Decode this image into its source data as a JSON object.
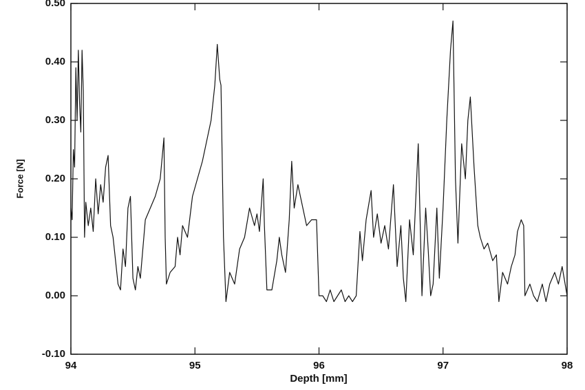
{
  "chart_data": {
    "type": "line",
    "xlabel": "Depth [mm]",
    "ylabel": "Force [N]",
    "x": [
      94.0,
      94.01,
      94.02,
      94.03,
      94.04,
      94.05,
      94.06,
      94.07,
      94.08,
      94.09,
      94.1,
      94.11,
      94.12,
      94.14,
      94.16,
      94.18,
      94.2,
      94.22,
      94.24,
      94.26,
      94.28,
      94.3,
      94.32,
      94.34,
      94.36,
      94.38,
      94.4,
      94.42,
      94.44,
      94.46,
      94.48,
      94.5,
      94.52,
      94.54,
      94.56,
      94.6,
      94.64,
      94.68,
      94.72,
      94.75,
      94.76,
      94.77,
      94.8,
      94.84,
      94.86,
      94.88,
      94.9,
      94.94,
      94.98,
      95.02,
      95.06,
      95.1,
      95.13,
      95.16,
      95.18,
      95.2,
      95.21,
      95.23,
      95.25,
      95.28,
      95.32,
      95.36,
      95.4,
      95.44,
      95.48,
      95.5,
      95.52,
      95.55,
      95.56,
      95.58,
      95.62,
      95.66,
      95.68,
      95.7,
      95.73,
      95.76,
      95.78,
      95.8,
      95.83,
      95.86,
      95.9,
      95.94,
      95.98,
      96.0,
      96.03,
      96.06,
      96.09,
      96.12,
      96.15,
      96.18,
      96.21,
      96.24,
      96.27,
      96.3,
      96.33,
      96.35,
      96.38,
      96.42,
      96.44,
      96.47,
      96.5,
      96.53,
      96.56,
      96.6,
      96.63,
      96.66,
      96.68,
      96.7,
      96.73,
      96.76,
      96.8,
      96.83,
      96.86,
      96.88,
      96.9,
      96.92,
      96.95,
      96.97,
      97.0,
      97.03,
      97.06,
      97.08,
      97.1,
      97.12,
      97.15,
      97.18,
      97.2,
      97.22,
      97.25,
      97.28,
      97.3,
      97.33,
      97.36,
      97.4,
      97.43,
      97.45,
      97.48,
      97.52,
      97.55,
      97.58,
      97.6,
      97.63,
      97.65,
      97.66,
      97.7,
      97.73,
      97.76,
      97.8,
      97.83,
      97.86,
      97.9,
      97.93,
      97.96,
      98.0
    ],
    "values": [
      0.15,
      0.13,
      0.25,
      0.22,
      0.39,
      0.3,
      0.42,
      0.33,
      0.28,
      0.42,
      0.35,
      0.1,
      0.16,
      0.12,
      0.15,
      0.11,
      0.2,
      0.14,
      0.19,
      0.16,
      0.22,
      0.24,
      0.12,
      0.1,
      0.06,
      0.02,
      0.01,
      0.08,
      0.05,
      0.15,
      0.17,
      0.03,
      0.01,
      0.05,
      0.03,
      0.13,
      0.15,
      0.17,
      0.2,
      0.27,
      0.1,
      0.02,
      0.04,
      0.05,
      0.1,
      0.07,
      0.12,
      0.1,
      0.17,
      0.2,
      0.23,
      0.27,
      0.3,
      0.36,
      0.43,
      0.37,
      0.36,
      0.1,
      -0.01,
      0.04,
      0.02,
      0.08,
      0.1,
      0.15,
      0.12,
      0.14,
      0.11,
      0.2,
      0.12,
      0.01,
      0.01,
      0.06,
      0.1,
      0.07,
      0.04,
      0.13,
      0.23,
      0.15,
      0.19,
      0.16,
      0.12,
      0.13,
      0.13,
      0.0,
      0.0,
      -0.01,
      0.01,
      -0.01,
      0.0,
      0.01,
      -0.01,
      0.0,
      -0.01,
      0.0,
      0.11,
      0.06,
      0.13,
      0.18,
      0.1,
      0.14,
      0.09,
      0.12,
      0.08,
      0.19,
      0.05,
      0.12,
      0.03,
      -0.01,
      0.13,
      0.07,
      0.26,
      0.0,
      0.15,
      0.08,
      0.0,
      0.02,
      0.15,
      0.03,
      0.15,
      0.3,
      0.42,
      0.47,
      0.2,
      0.09,
      0.26,
      0.2,
      0.3,
      0.34,
      0.22,
      0.12,
      0.1,
      0.08,
      0.09,
      0.06,
      0.07,
      -0.01,
      0.04,
      0.02,
      0.05,
      0.07,
      0.11,
      0.13,
      0.12,
      0.0,
      0.02,
      0.0,
      -0.01,
      0.02,
      -0.01,
      0.02,
      0.04,
      0.02,
      0.05,
      0.0
    ],
    "xlim": [
      94,
      98
    ],
    "xticks": [
      94,
      95,
      96,
      97,
      98
    ],
    "ylim": [
      -0.1,
      0.5
    ],
    "yticks": [
      {
        "value": -0.1,
        "label": "-0.10"
      },
      {
        "value": 0,
        "label": "0.00"
      },
      {
        "value": 0.1,
        "label": "0.10"
      },
      {
        "value": 0.2,
        "label": "0.20"
      },
      {
        "value": 0.3,
        "label": "0.30"
      },
      {
        "value": 0.4,
        "label": "0.40"
      },
      {
        "value": 0.5,
        "label": "0.50"
      }
    ],
    "color": "#111111",
    "grid": false
  }
}
